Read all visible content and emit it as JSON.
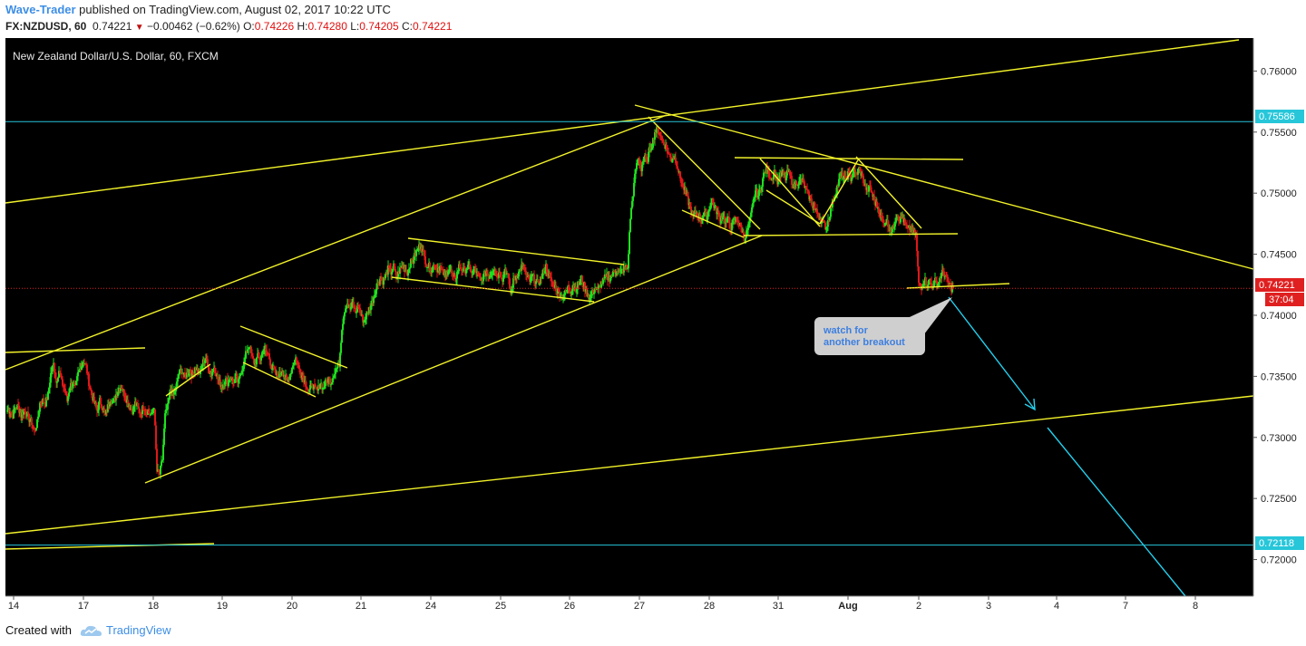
{
  "header": {
    "author": "Wave-Trader",
    "published_text": " published on TradingView.com, August 02, 2017 10:22 UTC",
    "symbol": "FX:NZDUSD, 60",
    "last": "0.74221",
    "change": "−0.00462 (−0.62%)",
    "o_label": "O:",
    "o_value": "0.74226",
    "h_label": "H:",
    "h_value": "0.74280",
    "l_label": "L:",
    "l_value": "0.74205",
    "c_label": "C:",
    "c_value": "0.74221"
  },
  "chart": {
    "title": "New Zealand Dollar/U.S. Dollar, 60, FXCM",
    "annotation_line1": "watch for",
    "annotation_line2": "another breakout",
    "price_badge": "0.74221",
    "countdown_badge": "37:04",
    "level_upper_label": "0.75586",
    "level_lower_label": "0.72118"
  },
  "colors": {
    "background": "#000000",
    "candle_up": "#1ee01e",
    "candle_down": "#e01818",
    "trendline": "#f2f22a",
    "level_line": "#27c6d9",
    "projection": "#24d0ee",
    "price_badge": "#e02020",
    "author_link": "#3d8ee6"
  },
  "footer": {
    "created_with": "Created with",
    "brand": "TradingView"
  },
  "chart_data": {
    "type": "candlestick",
    "title": "New Zealand Dollar/U.S. Dollar, 60, FXCM",
    "y_ticks": [
      "0.76000",
      "0.75500",
      "0.75000",
      "0.74500",
      "0.74000",
      "0.73500",
      "0.73000",
      "0.72500",
      "0.72000"
    ],
    "x_ticks": [
      "14",
      "17",
      "18",
      "19",
      "20",
      "21",
      "24",
      "25",
      "26",
      "27",
      "28",
      "31",
      "Aug",
      "2",
      "3",
      "4",
      "7",
      "8"
    ],
    "ylim": [
      0.717,
      0.763
    ],
    "last_price": 0.74221,
    "horizontal_levels": [
      0.75586,
      0.72118
    ],
    "price_path": [
      [
        0,
        0.7322
      ],
      [
        3,
        0.7322
      ],
      [
        6,
        0.7318
      ],
      [
        9,
        0.7325
      ],
      [
        12,
        0.7325
      ],
      [
        15,
        0.7318
      ],
      [
        18,
        0.7322
      ],
      [
        21,
        0.732
      ],
      [
        24,
        0.7315
      ],
      [
        27,
        0.7312
      ],
      [
        30,
        0.7305
      ],
      [
        33,
        0.7312
      ],
      [
        36,
        0.7328
      ],
      [
        39,
        0.733
      ],
      [
        42,
        0.7328
      ],
      [
        45,
        0.7335
      ],
      [
        48,
        0.7352
      ],
      [
        51,
        0.736
      ],
      [
        54,
        0.7345
      ],
      [
        57,
        0.7355
      ],
      [
        60,
        0.7345
      ],
      [
        63,
        0.734
      ],
      [
        66,
        0.733
      ],
      [
        69,
        0.7342
      ],
      [
        72,
        0.7345
      ],
      [
        75,
        0.734
      ],
      [
        78,
        0.7352
      ],
      [
        81,
        0.7358
      ],
      [
        84,
        0.7362
      ],
      [
        87,
        0.7358
      ],
      [
        90,
        0.7345
      ],
      [
        93,
        0.7335
      ],
      [
        96,
        0.7328
      ],
      [
        99,
        0.7322
      ],
      [
        102,
        0.733
      ],
      [
        105,
        0.7325
      ],
      [
        108,
        0.7318
      ],
      [
        111,
        0.7325
      ],
      [
        114,
        0.7332
      ],
      [
        117,
        0.7328
      ],
      [
        120,
        0.7335
      ],
      [
        123,
        0.734
      ],
      [
        126,
        0.7342
      ],
      [
        129,
        0.7335
      ],
      [
        132,
        0.733
      ],
      [
        135,
        0.7325
      ],
      [
        138,
        0.7322
      ],
      [
        141,
        0.7328
      ],
      [
        144,
        0.7324
      ],
      [
        147,
        0.732
      ],
      [
        150,
        0.7325
      ],
      [
        153,
        0.7322
      ],
      [
        156,
        0.732
      ],
      [
        159,
        0.7318
      ],
      [
        162,
        0.7325
      ],
      [
        165,
        0.7272
      ],
      [
        168,
        0.727
      ],
      [
        171,
        0.7282
      ],
      [
        174,
        0.7318
      ],
      [
        177,
        0.7325
      ],
      [
        180,
        0.734
      ],
      [
        183,
        0.7335
      ],
      [
        186,
        0.734
      ],
      [
        189,
        0.7352
      ],
      [
        192,
        0.7355
      ],
      [
        195,
        0.735
      ],
      [
        198,
        0.7352
      ],
      [
        201,
        0.7355
      ],
      [
        204,
        0.735
      ],
      [
        207,
        0.7358
      ],
      [
        210,
        0.7355
      ],
      [
        213,
        0.7352
      ],
      [
        216,
        0.7362
      ],
      [
        219,
        0.7365
      ],
      [
        222,
        0.7355
      ],
      [
        225,
        0.7352
      ],
      [
        228,
        0.7358
      ],
      [
        231,
        0.735
      ],
      [
        234,
        0.7345
      ],
      [
        237,
        0.7342
      ],
      [
        240,
        0.7348
      ],
      [
        243,
        0.7345
      ],
      [
        246,
        0.735
      ],
      [
        249,
        0.7345
      ],
      [
        252,
        0.7348
      ],
      [
        255,
        0.7345
      ],
      [
        258,
        0.7355
      ],
      [
        261,
        0.736
      ],
      [
        264,
        0.7372
      ],
      [
        267,
        0.7375
      ],
      [
        270,
        0.7365
      ],
      [
        273,
        0.736
      ],
      [
        276,
        0.7366
      ],
      [
        279,
        0.7364
      ],
      [
        282,
        0.7372
      ],
      [
        285,
        0.737
      ],
      [
        288,
        0.7368
      ],
      [
        291,
        0.7358
      ],
      [
        294,
        0.7355
      ],
      [
        297,
        0.735
      ],
      [
        300,
        0.7352
      ],
      [
        303,
        0.7355
      ],
      [
        306,
        0.735
      ],
      [
        309,
        0.7345
      ],
      [
        312,
        0.7352
      ],
      [
        315,
        0.736
      ],
      [
        318,
        0.7365
      ],
      [
        321,
        0.7358
      ],
      [
        324,
        0.7352
      ],
      [
        327,
        0.7348
      ],
      [
        330,
        0.7342
      ],
      [
        333,
        0.7338
      ],
      [
        336,
        0.7344
      ],
      [
        339,
        0.734
      ],
      [
        342,
        0.7338
      ],
      [
        345,
        0.7345
      ],
      [
        348,
        0.734
      ],
      [
        351,
        0.7345
      ],
      [
        354,
        0.7348
      ],
      [
        357,
        0.7345
      ],
      [
        360,
        0.7352
      ],
      [
        363,
        0.7356
      ],
      [
        366,
        0.736
      ],
      [
        369,
        0.739
      ],
      [
        372,
        0.7405
      ],
      [
        375,
        0.741
      ],
      [
        378,
        0.7405
      ],
      [
        381,
        0.741
      ],
      [
        384,
        0.7402
      ],
      [
        387,
        0.7408
      ],
      [
        390,
        0.74
      ],
      [
        393,
        0.7395
      ],
      [
        396,
        0.74
      ],
      [
        399,
        0.7405
      ],
      [
        402,
        0.741
      ],
      [
        405,
        0.7418
      ],
      [
        408,
        0.7425
      ],
      [
        411,
        0.743
      ],
      [
        414,
        0.7428
      ],
      [
        417,
        0.7432
      ],
      [
        420,
        0.7438
      ],
      [
        423,
        0.7435
      ],
      [
        426,
        0.744
      ],
      [
        429,
        0.743
      ],
      [
        432,
        0.7436
      ],
      [
        435,
        0.744
      ],
      [
        438,
        0.7438
      ],
      [
        441,
        0.7435
      ],
      [
        444,
        0.7442
      ],
      [
        447,
        0.7445
      ],
      [
        450,
        0.745
      ],
      [
        453,
        0.7455
      ],
      [
        456,
        0.7458
      ],
      [
        459,
        0.745
      ],
      [
        462,
        0.7442
      ],
      [
        465,
        0.744
      ],
      [
        468,
        0.7438
      ],
      [
        471,
        0.7442
      ],
      [
        474,
        0.7438
      ],
      [
        477,
        0.744
      ],
      [
        480,
        0.7435
      ],
      [
        483,
        0.7432
      ],
      [
        486,
        0.7438
      ],
      [
        489,
        0.7436
      ],
      [
        492,
        0.743
      ],
      [
        495,
        0.7432
      ],
      [
        498,
        0.744
      ],
      [
        501,
        0.7438
      ],
      [
        504,
        0.7436
      ],
      [
        507,
        0.744
      ],
      [
        510,
        0.7438
      ],
      [
        513,
        0.7435
      ],
      [
        516,
        0.7438
      ],
      [
        519,
        0.7432
      ],
      [
        522,
        0.7428
      ],
      [
        525,
        0.7432
      ],
      [
        528,
        0.7436
      ],
      [
        531,
        0.7432
      ],
      [
        534,
        0.7435
      ],
      [
        537,
        0.7438
      ],
      [
        540,
        0.7432
      ],
      [
        543,
        0.7435
      ],
      [
        546,
        0.743
      ],
      [
        549,
        0.7438
      ],
      [
        552,
        0.7432
      ],
      [
        555,
        0.7418
      ],
      [
        558,
        0.7428
      ],
      [
        561,
        0.7432
      ],
      [
        564,
        0.7435
      ],
      [
        567,
        0.744
      ],
      [
        570,
        0.7438
      ],
      [
        573,
        0.743
      ],
      [
        576,
        0.7428
      ],
      [
        579,
        0.7432
      ],
      [
        582,
        0.7428
      ],
      [
        585,
        0.7425
      ],
      [
        588,
        0.743
      ],
      [
        591,
        0.7435
      ],
      [
        594,
        0.744
      ],
      [
        597,
        0.7432
      ],
      [
        600,
        0.7428
      ],
      [
        603,
        0.7425
      ],
      [
        606,
        0.742
      ],
      [
        609,
        0.7418
      ],
      [
        612,
        0.7415
      ],
      [
        615,
        0.7418
      ],
      [
        618,
        0.7422
      ],
      [
        621,
        0.742
      ],
      [
        624,
        0.7425
      ],
      [
        627,
        0.7422
      ],
      [
        630,
        0.7426
      ],
      [
        633,
        0.743
      ],
      [
        636,
        0.7424
      ],
      [
        639,
        0.7418
      ],
      [
        642,
        0.7414
      ],
      [
        645,
        0.7418
      ],
      [
        648,
        0.7422
      ],
      [
        651,
        0.742
      ],
      [
        654,
        0.7425
      ],
      [
        657,
        0.7428
      ],
      [
        660,
        0.7432
      ],
      [
        663,
        0.743
      ],
      [
        666,
        0.7432
      ],
      [
        669,
        0.7435
      ],
      [
        672,
        0.7438
      ],
      [
        675,
        0.7435
      ],
      [
        678,
        0.7436
      ],
      [
        681,
        0.744
      ],
      [
        684,
        0.7438
      ],
      [
        687,
        0.748
      ],
      [
        690,
        0.75
      ],
      [
        693,
        0.752
      ],
      [
        696,
        0.7528
      ],
      [
        699,
        0.752
      ],
      [
        702,
        0.753
      ],
      [
        705,
        0.7525
      ],
      [
        708,
        0.7535
      ],
      [
        711,
        0.754
      ],
      [
        714,
        0.755
      ],
      [
        717,
        0.7552
      ],
      [
        720,
        0.7548
      ],
      [
        723,
        0.7542
      ],
      [
        726,
        0.7538
      ],
      [
        729,
        0.7532
      ],
      [
        732,
        0.7528
      ],
      [
        735,
        0.753
      ],
      [
        738,
        0.7525
      ],
      [
        741,
        0.7515
      ],
      [
        744,
        0.7508
      ],
      [
        747,
        0.7502
      ],
      [
        750,
        0.7495
      ],
      [
        753,
        0.7488
      ],
      [
        756,
        0.748
      ],
      [
        759,
        0.7485
      ],
      [
        762,
        0.7482
      ],
      [
        765,
        0.7478
      ],
      [
        768,
        0.7484
      ],
      [
        771,
        0.748
      ],
      [
        774,
        0.7488
      ],
      [
        777,
        0.7494
      ],
      [
        780,
        0.7488
      ],
      [
        783,
        0.7484
      ],
      [
        786,
        0.7478
      ],
      [
        789,
        0.7482
      ],
      [
        792,
        0.7475
      ],
      [
        795,
        0.7478
      ],
      [
        798,
        0.7472
      ],
      [
        801,
        0.7476
      ],
      [
        804,
        0.748
      ],
      [
        807,
        0.7475
      ],
      [
        810,
        0.747
      ],
      [
        813,
        0.7462
      ],
      [
        816,
        0.747
      ],
      [
        819,
        0.7478
      ],
      [
        822,
        0.749
      ],
      [
        825,
        0.7502
      ],
      [
        828,
        0.7498
      ],
      [
        831,
        0.7505
      ],
      [
        834,
        0.7515
      ],
      [
        837,
        0.752
      ],
      [
        840,
        0.7515
      ],
      [
        843,
        0.7512
      ],
      [
        846,
        0.7518
      ],
      [
        849,
        0.751
      ],
      [
        852,
        0.7514
      ],
      [
        855,
        0.7516
      ],
      [
        858,
        0.7512
      ],
      [
        861,
        0.7518
      ],
      [
        864,
        0.7512
      ],
      [
        867,
        0.7505
      ],
      [
        870,
        0.751
      ],
      [
        873,
        0.7508
      ],
      [
        876,
        0.7512
      ],
      [
        879,
        0.7506
      ],
      [
        882,
        0.75
      ],
      [
        885,
        0.7496
      ],
      [
        888,
        0.749
      ],
      [
        891,
        0.7486
      ],
      [
        894,
        0.7482
      ],
      [
        897,
        0.7478
      ],
      [
        900,
        0.7475
      ],
      [
        903,
        0.7472
      ],
      [
        906,
        0.748
      ],
      [
        909,
        0.749
      ],
      [
        912,
        0.7498
      ],
      [
        915,
        0.7505
      ],
      [
        918,
        0.7512
      ],
      [
        921,
        0.7515
      ],
      [
        924,
        0.751
      ],
      [
        927,
        0.7516
      ],
      [
        930,
        0.7512
      ],
      [
        933,
        0.7518
      ],
      [
        936,
        0.7515
      ],
      [
        939,
        0.752
      ],
      [
        942,
        0.7515
      ],
      [
        945,
        0.7508
      ],
      [
        948,
        0.7502
      ],
      [
        951,
        0.7505
      ],
      [
        954,
        0.7498
      ],
      [
        957,
        0.7492
      ],
      [
        960,
        0.7488
      ],
      [
        963,
        0.7482
      ],
      [
        966,
        0.7475
      ],
      [
        969,
        0.7478
      ],
      [
        972,
        0.7472
      ],
      [
        975,
        0.7468
      ],
      [
        978,
        0.7475
      ],
      [
        981,
        0.7484
      ],
      [
        984,
        0.7478
      ],
      [
        987,
        0.748
      ],
      [
        990,
        0.7474
      ],
      [
        993,
        0.747
      ],
      [
        996,
        0.7472
      ],
      [
        999,
        0.7468
      ],
      [
        1002,
        0.7466
      ],
      [
        1005,
        0.7425
      ],
      [
        1008,
        0.7424
      ],
      [
        1011,
        0.743
      ],
      [
        1014,
        0.7426
      ],
      [
        1017,
        0.7428
      ],
      [
        1020,
        0.7424
      ],
      [
        1023,
        0.7428
      ],
      [
        1026,
        0.7426
      ],
      [
        1029,
        0.7432
      ],
      [
        1032,
        0.7436
      ],
      [
        1035,
        0.743
      ],
      [
        1038,
        0.7426
      ],
      [
        1041,
        0.7422
      ],
      [
        1044,
        0.7422
      ]
    ]
  }
}
